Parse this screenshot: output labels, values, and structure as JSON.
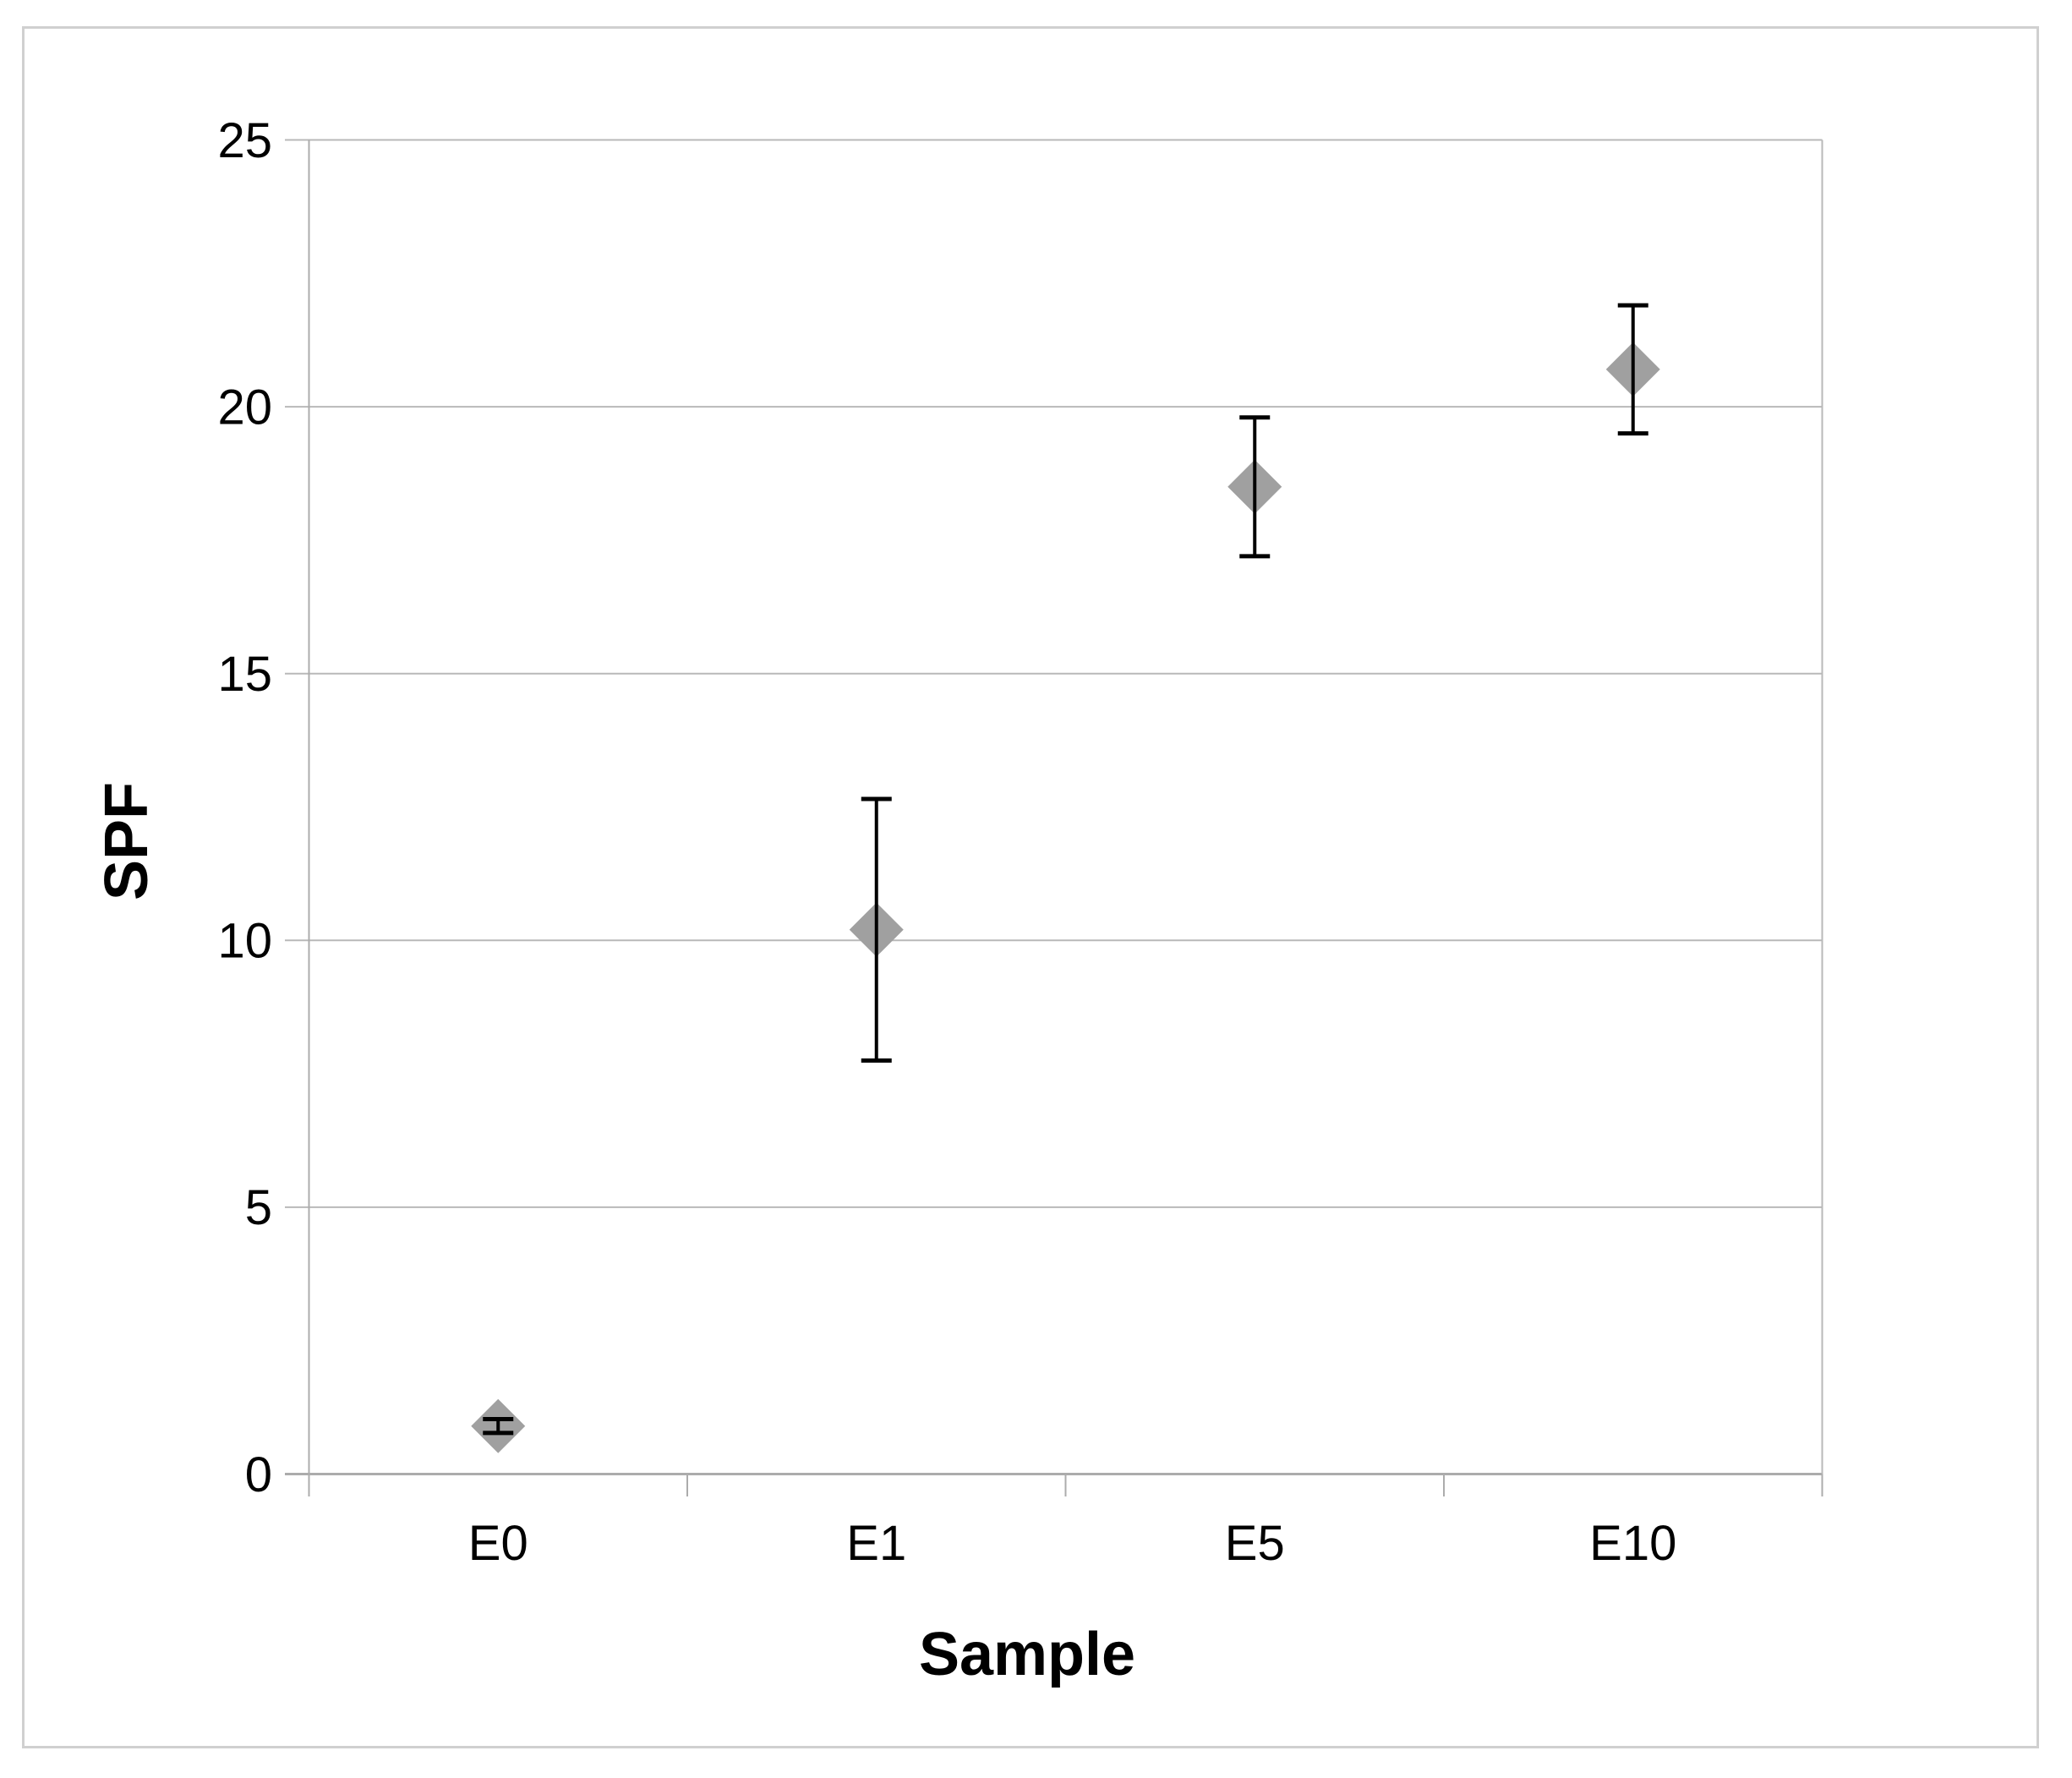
{
  "chart_data": {
    "type": "scatter",
    "title": "",
    "xlabel": "Sample",
    "ylabel": "SPF",
    "categories": [
      "E0",
      "E1",
      "E5",
      "E10"
    ],
    "series": [
      {
        "name": "SPF",
        "values": [
          0.9,
          10.2,
          18.5,
          20.7
        ],
        "error_plus": [
          0.13,
          2.45,
          1.3,
          1.2
        ],
        "error_minus": [
          0.13,
          2.45,
          1.3,
          1.2
        ]
      }
    ],
    "ylim": [
      0,
      25
    ],
    "y_ticks": [
      0,
      5,
      10,
      15,
      20,
      25
    ],
    "grid": true,
    "legend": false,
    "marker": {
      "shape": "diamond",
      "color": "#a0a0a0"
    },
    "colors": {
      "background": "#ffffff",
      "border": "#d0d0d0",
      "axis": "#acacac",
      "gridline": "#b9b9b9",
      "error_bar": "#000000",
      "text": "#000000"
    }
  }
}
